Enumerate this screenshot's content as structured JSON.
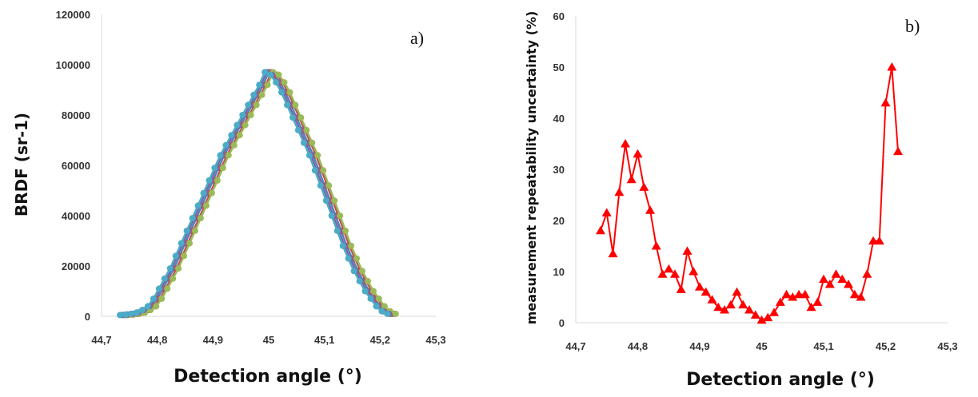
{
  "chart_data": [
    {
      "type": "line",
      "panel_label": "a)",
      "xlabel": "Detection angle (°)",
      "ylabel": "BRDF (sr-1)",
      "xlim": [
        44.7,
        45.3
      ],
      "ylim": [
        0,
        120000
      ],
      "x_ticks": [
        "44,7",
        "44,8",
        "44,9",
        "45",
        "45,1",
        "45,2",
        "45,3"
      ],
      "y_ticks": [
        "0",
        "20000",
        "40000",
        "60000",
        "80000",
        "100000",
        "120000"
      ],
      "grid": false,
      "legend": "none",
      "series": [
        {
          "color": "#4f81bd",
          "shift": 0.0
        },
        {
          "color": "#c0504d",
          "shift": 0.005
        },
        {
          "color": "#9bbb59",
          "shift": 0.008
        },
        {
          "color": "#8064a2",
          "shift": -0.004
        },
        {
          "color": "#4bacc6",
          "shift": -0.007
        }
      ],
      "profile": {
        "x": [
          44.74,
          44.75,
          44.76,
          44.77,
          44.78,
          44.79,
          44.8,
          44.81,
          44.82,
          44.83,
          44.84,
          44.85,
          44.86,
          44.87,
          44.88,
          44.89,
          44.9,
          44.91,
          44.92,
          44.93,
          44.94,
          44.95,
          44.96,
          44.97,
          44.98,
          44.99,
          45.0,
          45.01,
          45.02,
          45.03,
          45.04,
          45.05,
          45.06,
          45.07,
          45.08,
          45.09,
          45.1,
          45.11,
          45.12,
          45.13,
          45.14,
          45.15,
          45.16,
          45.17,
          45.18,
          45.19,
          45.2,
          45.21,
          45.22
        ],
        "y": [
          500,
          700,
          1000,
          1500,
          2500,
          4000,
          7000,
          11000,
          15000,
          19000,
          24000,
          29000,
          34000,
          39000,
          44000,
          49000,
          54000,
          59000,
          64000,
          68000,
          72000,
          76000,
          80000,
          84000,
          88000,
          92000,
          97000,
          96000,
          93000,
          89000,
          84000,
          79000,
          74000,
          69000,
          64000,
          58000,
          52000,
          46000,
          40000,
          34000,
          28000,
          23000,
          18000,
          14000,
          10000,
          7000,
          4000,
          2000,
          1000
        ]
      }
    },
    {
      "type": "line",
      "panel_label": "b)",
      "xlabel": "Detection angle (°)",
      "ylabel": "measurement repeatability uncertainty (%)",
      "xlim": [
        44.7,
        45.3
      ],
      "ylim": [
        0,
        60
      ],
      "x_ticks": [
        "44,7",
        "44,8",
        "44,9",
        "45",
        "45,1",
        "45,2",
        "45,3"
      ],
      "y_ticks": [
        "0",
        "10",
        "20",
        "30",
        "40",
        "50",
        "60"
      ],
      "grid": false,
      "legend": "none",
      "series": [
        {
          "color": "#ff0000",
          "marker": "triangle",
          "x": [
            44.74,
            44.75,
            44.76,
            44.77,
            44.78,
            44.79,
            44.8,
            44.81,
            44.82,
            44.83,
            44.84,
            44.85,
            44.86,
            44.87,
            44.88,
            44.89,
            44.9,
            44.91,
            44.92,
            44.93,
            44.94,
            44.95,
            44.96,
            44.97,
            44.98,
            44.99,
            45.0,
            45.01,
            45.02,
            45.03,
            45.04,
            45.05,
            45.06,
            45.07,
            45.08,
            45.09,
            45.1,
            45.11,
            45.12,
            45.13,
            45.14,
            45.15,
            45.16,
            45.17,
            45.18,
            45.19,
            45.2,
            45.21,
            45.22
          ],
          "y": [
            18,
            21.5,
            13.5,
            25.5,
            35,
            28,
            33,
            26.5,
            22,
            15,
            9.5,
            10.5,
            9.5,
            6.5,
            14,
            10,
            7,
            6,
            4.5,
            3,
            2.5,
            3.5,
            6,
            3.5,
            2.5,
            1.5,
            0.5,
            1,
            2,
            4,
            5.5,
            5,
            5.5,
            5.5,
            3,
            4,
            8.5,
            7.5,
            9.5,
            8.5,
            7.5,
            5.5,
            5,
            9.5,
            16,
            16,
            43,
            50,
            33.5
          ]
        }
      ]
    }
  ]
}
